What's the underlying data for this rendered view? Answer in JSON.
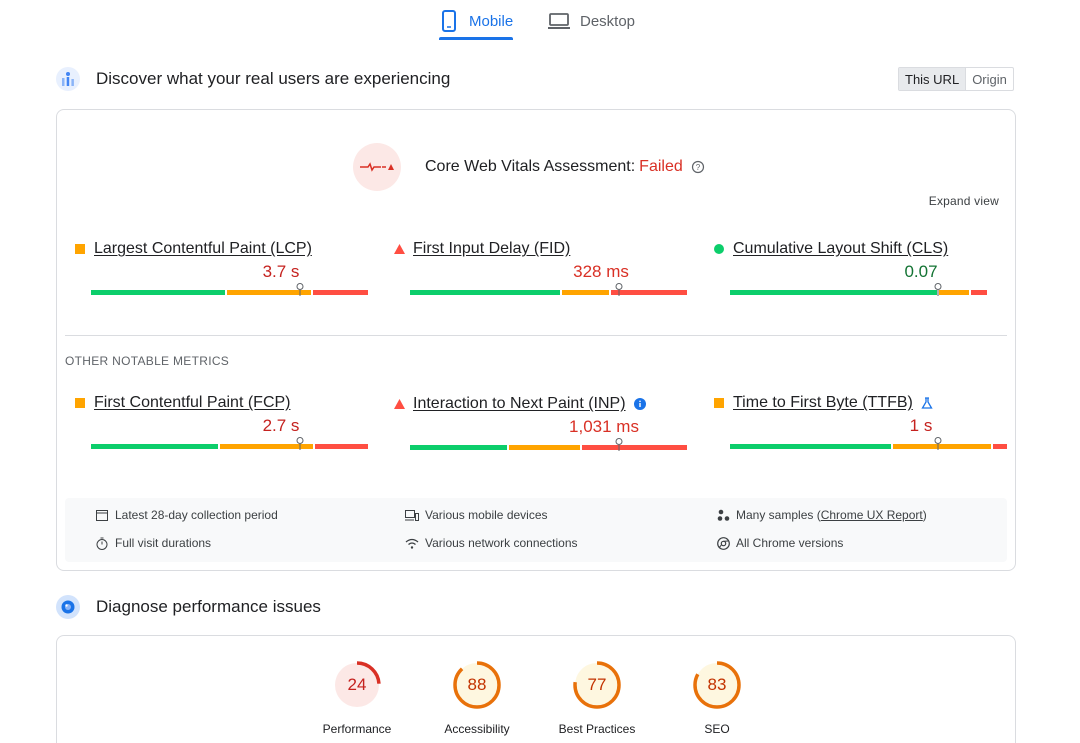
{
  "tabs": [
    {
      "label": "Mobile",
      "icon": "phone-icon",
      "active": true
    },
    {
      "label": "Desktop",
      "icon": "laptop-icon",
      "active": false
    }
  ],
  "field_section": {
    "title": "Discover what your real users are experiencing",
    "toggle": [
      "This URL",
      "Origin"
    ],
    "selected_toggle": "This URL"
  },
  "assessment": {
    "label": "Core Web Vitals Assessment:",
    "result": "Failed",
    "expand": "Expand view"
  },
  "core_metrics": [
    {
      "name": "Largest Contentful Paint (LCP)",
      "value": "3.7 s",
      "status": "needs-improvement"
    },
    {
      "name": "First Input Delay (FID)",
      "value": "328 ms",
      "status": "poor"
    },
    {
      "name": "Cumulative Layout Shift (CLS)",
      "value": "0.07",
      "status": "good"
    }
  ],
  "other_label": "OTHER NOTABLE METRICS",
  "other_metrics": [
    {
      "name": "First Contentful Paint (FCP)",
      "value": "2.7 s",
      "status": "needs-improvement"
    },
    {
      "name": "Interaction to Next Paint (INP)",
      "value": "1,031 ms",
      "status": "poor",
      "extra_icon": "info-icon"
    },
    {
      "name": "Time to First Byte (TTFB)",
      "value": "1 s",
      "status": "needs-improvement",
      "extra_icon": "flask-icon"
    }
  ],
  "info": {
    "period": "Latest 28-day collection period",
    "durations": "Full visit durations",
    "devices": "Various mobile devices",
    "network": "Various network connections",
    "samples_prefix": "Many samples (",
    "samples_link": "Chrome UX Report",
    "samples_suffix": ")",
    "versions": "All Chrome versions"
  },
  "diagnose_section": {
    "title": "Diagnose performance issues"
  },
  "scores": [
    {
      "label": "Performance",
      "value": "24",
      "fraction": 0.24,
      "color": "#d93025",
      "bg": "#fce8e6"
    },
    {
      "label": "Accessibility",
      "value": "88",
      "fraction": 0.88,
      "color": "#e8710a",
      "bg": "#fef7e0"
    },
    {
      "label": "Best Practices",
      "value": "77",
      "fraction": 0.77,
      "color": "#e8710a",
      "bg": "#fef7e0"
    },
    {
      "label": "SEO",
      "value": "83",
      "fraction": 0.83,
      "color": "#e8710a",
      "bg": "#fef7e0"
    }
  ],
  "colors": {
    "accent": "#1a73e8",
    "good": "#0cce6b",
    "average": "#ffa400",
    "poor": "#ff4e42"
  }
}
